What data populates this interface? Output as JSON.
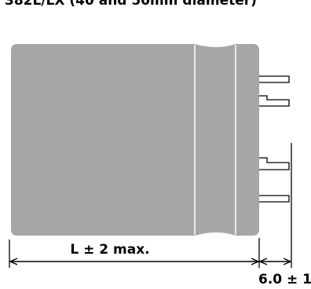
{
  "title": "382L/LX (40 and 50mm diameter)",
  "dimensions": {
    "length_label": "L ± 2 max.",
    "lead_label": "6.0 ± 1"
  },
  "colors": {
    "body_fill": "#a6a6a6",
    "outline": "#000000",
    "band_line": "#ffffff"
  }
}
